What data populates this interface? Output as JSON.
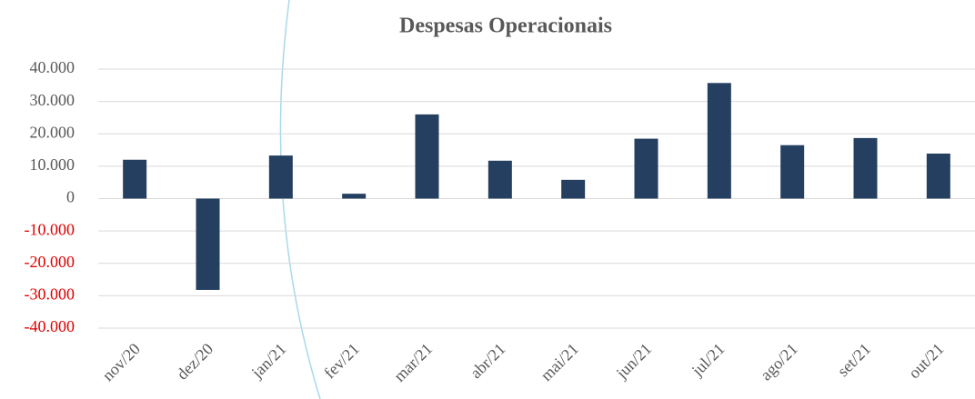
{
  "chart_data": {
    "type": "bar",
    "title": "Despesas Operacionais",
    "categories": [
      "nov/20",
      "dez/20",
      "jan/21",
      "fev/21",
      "mar/21",
      "abr/21",
      "mai/21",
      "jun/21",
      "jul/21",
      "ago/21",
      "set/21",
      "out/21"
    ],
    "values": [
      12000,
      -28200,
      13300,
      1500,
      26000,
      11700,
      5800,
      18500,
      35700,
      16500,
      18700,
      13900
    ],
    "color": "#243f60",
    "ylim": [
      -40000,
      40000
    ],
    "yticks": [
      {
        "value": -40000,
        "label": "-40.000"
      },
      {
        "value": -30000,
        "label": "-30.000"
      },
      {
        "value": -20000,
        "label": "-20.000"
      },
      {
        "value": -10000,
        "label": "-10.000"
      },
      0,
      {
        "value": 10000,
        "label": "10.000"
      },
      {
        "value": 20000,
        "label": "20.000"
      },
      {
        "value": 30000,
        "label": "30.000"
      },
      {
        "value": 40000,
        "label": "40.000"
      }
    ],
    "grid": true,
    "tick_color": "#595959",
    "negative_tick_color": "#e00000"
  }
}
